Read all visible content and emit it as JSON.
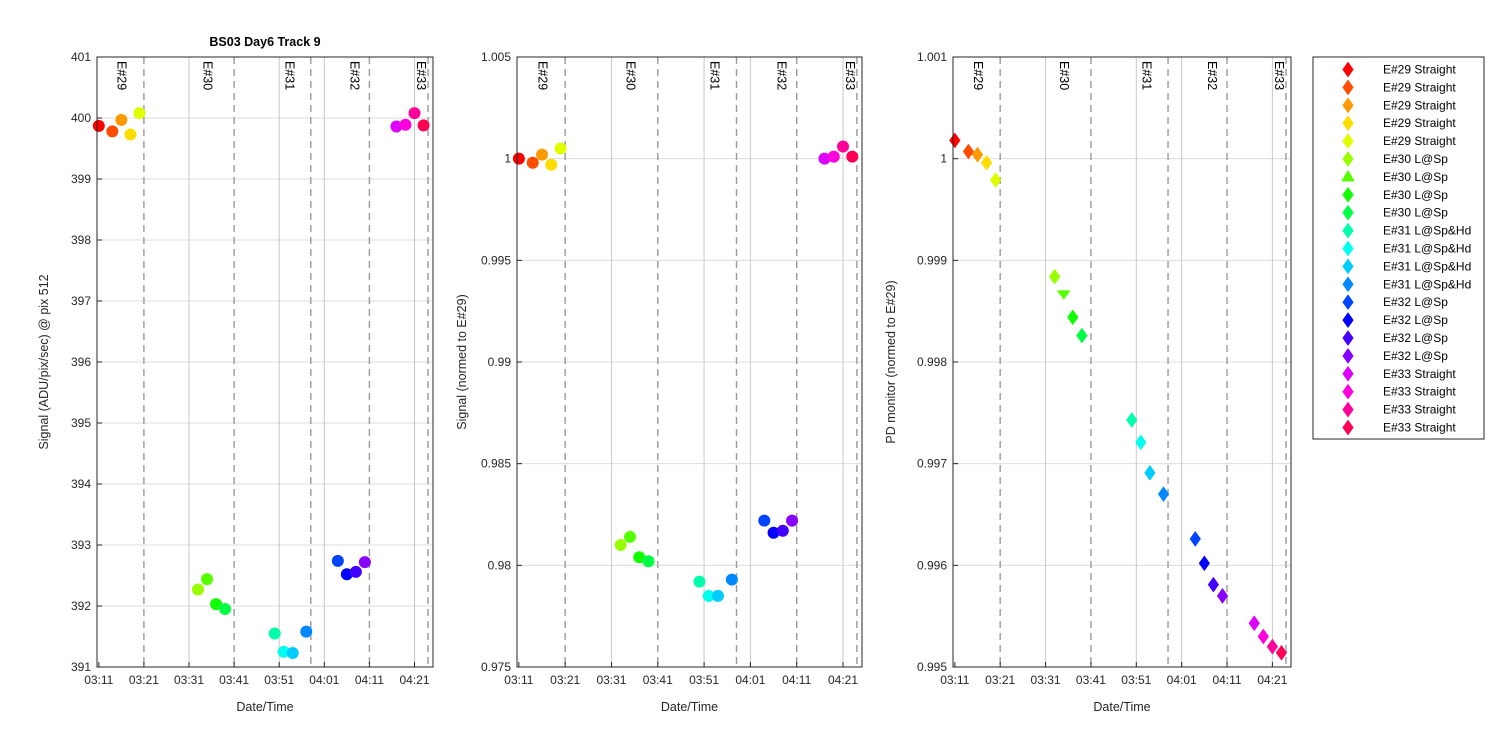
{
  "chart_data": [
    {
      "type": "scatter",
      "title": "BS03 Day6 Track 9",
      "xlabel": "Date/Time",
      "ylabel": "Signal (ADU/pix/sec) @ pix 512",
      "ylim": [
        391,
        401
      ],
      "yticks": [
        "391",
        "392",
        "393",
        "394",
        "395",
        "396",
        "397",
        "398",
        "399",
        "400",
        "401"
      ],
      "xticks": [
        "03:11",
        "03:21",
        "03:31",
        "03:41",
        "03:51",
        "04:01",
        "04:11",
        "04:21"
      ],
      "grid": true,
      "marker": "circle",
      "experiment_labels": [
        "E#29",
        "E#30",
        "E#31",
        "E#32",
        "E#33"
      ],
      "points": [
        {
          "x": "03:11",
          "y": 399.87
        },
        {
          "x": "03:14",
          "y": 399.78
        },
        {
          "x": "03:16",
          "y": 399.97
        },
        {
          "x": "03:18",
          "y": 399.73
        },
        {
          "x": "03:20",
          "y": 400.08
        },
        {
          "x": "03:33",
          "y": 392.27
        },
        {
          "x": "03:35",
          "y": 392.44
        },
        {
          "x": "03:37",
          "y": 392.03
        },
        {
          "x": "03:39",
          "y": 391.95
        },
        {
          "x": "03:50",
          "y": 391.55
        },
        {
          "x": "03:52",
          "y": 391.25
        },
        {
          "x": "03:54",
          "y": 391.23
        },
        {
          "x": "03:57",
          "y": 391.58
        },
        {
          "x": "04:04",
          "y": 392.74
        },
        {
          "x": "04:06",
          "y": 392.52
        },
        {
          "x": "04:08",
          "y": 392.56
        },
        {
          "x": "04:10",
          "y": 392.72
        },
        {
          "x": "04:17",
          "y": 399.86
        },
        {
          "x": "04:19",
          "y": 399.89
        },
        {
          "x": "04:21",
          "y": 400.08
        },
        {
          "x": "04:23",
          "y": 399.88
        }
      ]
    },
    {
      "type": "scatter",
      "title": "",
      "xlabel": "Date/Time",
      "ylabel": "Signal (normed to E#29)",
      "ylim": [
        0.975,
        1.005
      ],
      "yticks": [
        "0.975",
        "0.98",
        "0.985",
        "0.99",
        "0.995",
        "1",
        "1.005"
      ],
      "xticks": [
        "03:11",
        "03:21",
        "03:31",
        "03:41",
        "03:51",
        "04:01",
        "04:11",
        "04:21"
      ],
      "grid": true,
      "marker": "circle",
      "experiment_labels": [
        "E#29",
        "E#30",
        "E#31",
        "E#32",
        "E#33"
      ],
      "points": [
        {
          "x": "03:11",
          "y": 1.0
        },
        {
          "x": "03:14",
          "y": 0.9998
        },
        {
          "x": "03:16",
          "y": 1.0002
        },
        {
          "x": "03:18",
          "y": 0.9997
        },
        {
          "x": "03:20",
          "y": 1.0005
        },
        {
          "x": "03:33",
          "y": 0.981
        },
        {
          "x": "03:35",
          "y": 0.9814
        },
        {
          "x": "03:37",
          "y": 0.9804
        },
        {
          "x": "03:39",
          "y": 0.9802
        },
        {
          "x": "03:50",
          "y": 0.9792
        },
        {
          "x": "03:52",
          "y": 0.9785
        },
        {
          "x": "03:54",
          "y": 0.9785
        },
        {
          "x": "03:57",
          "y": 0.9793
        },
        {
          "x": "04:04",
          "y": 0.9822
        },
        {
          "x": "04:06",
          "y": 0.9816
        },
        {
          "x": "04:08",
          "y": 0.9817
        },
        {
          "x": "04:10",
          "y": 0.9822
        },
        {
          "x": "04:17",
          "y": 1.0
        },
        {
          "x": "04:19",
          "y": 1.0001
        },
        {
          "x": "04:21",
          "y": 1.0006
        },
        {
          "x": "04:23",
          "y": 1.0001
        }
      ]
    },
    {
      "type": "scatter",
      "title": "",
      "xlabel": "Date/Time",
      "ylabel": "PD monitor (normed to E#29)",
      "ylim": [
        0.995,
        1.001
      ],
      "yticks": [
        "0.995",
        "0.996",
        "0.997",
        "0.998",
        "0.999",
        "1",
        "1.001"
      ],
      "xticks": [
        "03:11",
        "03:21",
        "03:31",
        "03:41",
        "03:51",
        "04:01",
        "04:11",
        "04:21"
      ],
      "grid": true,
      "marker": "diamond",
      "experiment_labels": [
        "E#29",
        "E#30",
        "E#31",
        "E#32",
        "E#33"
      ],
      "points": [
        {
          "x": "03:11",
          "y": 1.00018
        },
        {
          "x": "03:14",
          "y": 1.00007
        },
        {
          "x": "03:16",
          "y": 1.00004
        },
        {
          "x": "03:18",
          "y": 0.99996
        },
        {
          "x": "03:20",
          "y": 0.99979
        },
        {
          "x": "03:33",
          "y": 0.99884
        },
        {
          "x": "03:35",
          "y": 0.99867
        },
        {
          "x": "03:37",
          "y": 0.99844
        },
        {
          "x": "03:39",
          "y": 0.99826
        },
        {
          "x": "03:50",
          "y": 0.99743
        },
        {
          "x": "03:52",
          "y": 0.99721
        },
        {
          "x": "03:54",
          "y": 0.99691
        },
        {
          "x": "03:57",
          "y": 0.9967
        },
        {
          "x": "04:04",
          "y": 0.99626
        },
        {
          "x": "04:06",
          "y": 0.99602
        },
        {
          "x": "04:08",
          "y": 0.99581
        },
        {
          "x": "04:10",
          "y": 0.9957
        },
        {
          "x": "04:17",
          "y": 0.99543
        },
        {
          "x": "04:19",
          "y": 0.9953
        },
        {
          "x": "04:21",
          "y": 0.9952
        },
        {
          "x": "04:23",
          "y": 0.99514
        }
      ]
    }
  ],
  "legend": {
    "placement": "right",
    "entries": [
      {
        "label": "E#29 Straight",
        "color": "#ff0000",
        "marker": "diamond"
      },
      {
        "label": "E#29 Straight",
        "color": "#ff4d00",
        "marker": "diamond"
      },
      {
        "label": "E#29 Straight",
        "color": "#ff9900",
        "marker": "diamond"
      },
      {
        "label": "E#29 Straight",
        "color": "#ffdd00",
        "marker": "diamond"
      },
      {
        "label": "E#29 Straight",
        "color": "#ddff00",
        "marker": "diamond"
      },
      {
        "label": "E#30 L@Sp",
        "color": "#99ff00",
        "marker": "diamond"
      },
      {
        "label": "E#30 L@Sp",
        "color": "#55ff00",
        "marker": "triangle"
      },
      {
        "label": "E#30 L@Sp",
        "color": "#11ff00",
        "marker": "diamond"
      },
      {
        "label": "E#30 L@Sp",
        "color": "#00ff44",
        "marker": "diamond"
      },
      {
        "label": "E#31 L@Sp&Hd",
        "color": "#00ffaa",
        "marker": "diamond"
      },
      {
        "label": "E#31 L@Sp&Hd",
        "color": "#00ffee",
        "marker": "diamond"
      },
      {
        "label": "E#31 L@Sp&Hd",
        "color": "#00ccff",
        "marker": "diamond"
      },
      {
        "label": "E#31 L@Sp&Hd",
        "color": "#0088ff",
        "marker": "diamond"
      },
      {
        "label": "E#32 L@Sp",
        "color": "#0044ff",
        "marker": "diamond"
      },
      {
        "label": "E#32 L@Sp",
        "color": "#0000ff",
        "marker": "diamond"
      },
      {
        "label": "E#32 L@Sp",
        "color": "#4400ff",
        "marker": "diamond"
      },
      {
        "label": "E#32 L@Sp",
        "color": "#8800ff",
        "marker": "diamond"
      },
      {
        "label": "E#33 Straight",
        "color": "#dd00ff",
        "marker": "diamond"
      },
      {
        "label": "E#33 Straight",
        "color": "#ff00dd",
        "marker": "diamond"
      },
      {
        "label": "E#33 Straight",
        "color": "#ff0099",
        "marker": "diamond"
      },
      {
        "label": "E#33 Straight",
        "color": "#ff0055",
        "marker": "diamond"
      }
    ]
  }
}
